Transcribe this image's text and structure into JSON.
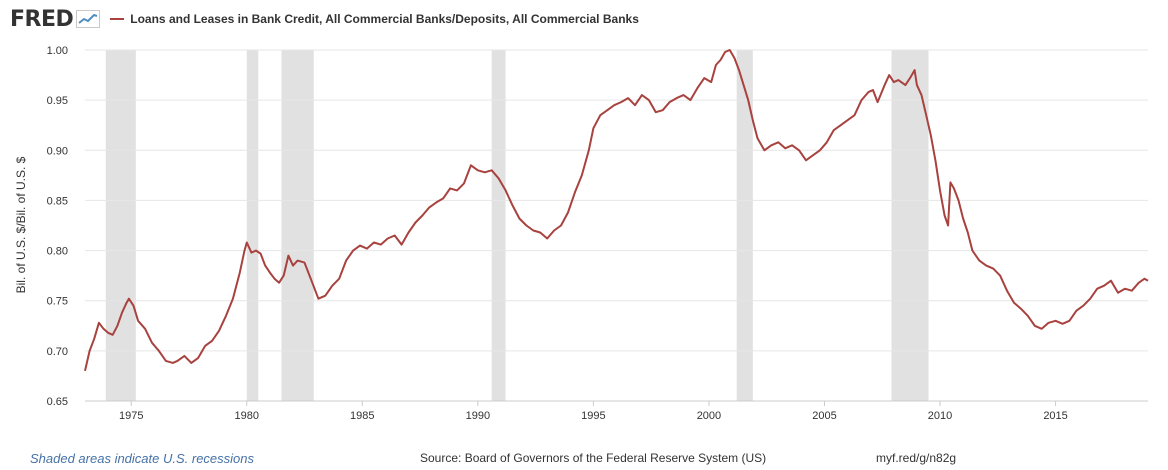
{
  "header": {
    "logo": "FRED",
    "series_label": "Loans and Leases in Bank Credit, All Commercial Banks/Deposits, All Commercial Banks"
  },
  "footer": {
    "recession_note": "Shaded areas indicate U.S. recessions",
    "source": "Source: Board of Governors of the Federal Reserve System (US)",
    "url": "myf.red/g/n82g"
  },
  "colors": {
    "line": "#a8423f",
    "recession": "#e1e1e1",
    "grid": "#e6e6e6",
    "plot_bg": "#ffffff"
  },
  "chart_data": {
    "type": "line",
    "title": "Loans and Leases in Bank Credit, All Commercial Banks/Deposits, All Commercial Banks",
    "xlabel": "",
    "ylabel": "Bil. of U.S. $/Bil. of U.S. $",
    "xlim": [
      1973.0,
      2019.0
    ],
    "ylim": [
      0.65,
      1.0
    ],
    "yticks": [
      0.65,
      0.7,
      0.75,
      0.8,
      0.85,
      0.9,
      0.95,
      1.0
    ],
    "ytick_labels": [
      "0.65",
      "0.70",
      "0.75",
      "0.80",
      "0.85",
      "0.90",
      "0.95",
      "1.00"
    ],
    "xticks": [
      1975,
      1980,
      1985,
      1990,
      1995,
      2000,
      2005,
      2010,
      2015
    ],
    "xtick_labels": [
      "1975",
      "1980",
      "1985",
      "1990",
      "1995",
      "2000",
      "2005",
      "2010",
      "2015"
    ],
    "recessions": [
      [
        1973.9,
        1975.2
      ],
      [
        1980.0,
        1980.5
      ],
      [
        1981.5,
        1982.9
      ],
      [
        1990.6,
        1991.2
      ],
      [
        2001.2,
        2001.9
      ],
      [
        2007.9,
        2009.5
      ]
    ],
    "series": [
      {
        "name": "Loans and Leases in Bank Credit, All Commercial Banks/Deposits, All Commercial Banks",
        "points": [
          [
            1973.0,
            0.68
          ],
          [
            1973.2,
            0.7
          ],
          [
            1973.4,
            0.712
          ],
          [
            1973.6,
            0.728
          ],
          [
            1973.8,
            0.722
          ],
          [
            1974.0,
            0.718
          ],
          [
            1974.2,
            0.716
          ],
          [
            1974.4,
            0.725
          ],
          [
            1974.6,
            0.738
          ],
          [
            1974.8,
            0.748
          ],
          [
            1974.9,
            0.752
          ],
          [
            1975.1,
            0.745
          ],
          [
            1975.3,
            0.73
          ],
          [
            1975.6,
            0.722
          ],
          [
            1975.9,
            0.708
          ],
          [
            1976.2,
            0.7
          ],
          [
            1976.5,
            0.69
          ],
          [
            1976.8,
            0.688
          ],
          [
            1977.0,
            0.69
          ],
          [
            1977.3,
            0.695
          ],
          [
            1977.6,
            0.688
          ],
          [
            1977.9,
            0.693
          ],
          [
            1978.2,
            0.705
          ],
          [
            1978.5,
            0.71
          ],
          [
            1978.8,
            0.72
          ],
          [
            1979.1,
            0.735
          ],
          [
            1979.4,
            0.752
          ],
          [
            1979.7,
            0.778
          ],
          [
            1979.9,
            0.8
          ],
          [
            1980.0,
            0.808
          ],
          [
            1980.2,
            0.798
          ],
          [
            1980.4,
            0.8
          ],
          [
            1980.6,
            0.797
          ],
          [
            1980.8,
            0.785
          ],
          [
            1981.0,
            0.778
          ],
          [
            1981.2,
            0.772
          ],
          [
            1981.4,
            0.768
          ],
          [
            1981.6,
            0.775
          ],
          [
            1981.8,
            0.795
          ],
          [
            1982.0,
            0.785
          ],
          [
            1982.2,
            0.79
          ],
          [
            1982.5,
            0.788
          ],
          [
            1982.8,
            0.77
          ],
          [
            1983.1,
            0.752
          ],
          [
            1983.4,
            0.755
          ],
          [
            1983.7,
            0.765
          ],
          [
            1984.0,
            0.772
          ],
          [
            1984.3,
            0.79
          ],
          [
            1984.6,
            0.8
          ],
          [
            1984.9,
            0.805
          ],
          [
            1985.2,
            0.802
          ],
          [
            1985.5,
            0.808
          ],
          [
            1985.8,
            0.806
          ],
          [
            1986.1,
            0.812
          ],
          [
            1986.4,
            0.815
          ],
          [
            1986.7,
            0.806
          ],
          [
            1987.0,
            0.818
          ],
          [
            1987.3,
            0.828
          ],
          [
            1987.6,
            0.835
          ],
          [
            1987.9,
            0.843
          ],
          [
            1988.2,
            0.848
          ],
          [
            1988.5,
            0.852
          ],
          [
            1988.8,
            0.862
          ],
          [
            1989.1,
            0.86
          ],
          [
            1989.4,
            0.867
          ],
          [
            1989.7,
            0.885
          ],
          [
            1990.0,
            0.88
          ],
          [
            1990.3,
            0.878
          ],
          [
            1990.6,
            0.88
          ],
          [
            1990.9,
            0.872
          ],
          [
            1991.2,
            0.86
          ],
          [
            1991.5,
            0.845
          ],
          [
            1991.8,
            0.832
          ],
          [
            1992.1,
            0.825
          ],
          [
            1992.4,
            0.82
          ],
          [
            1992.7,
            0.818
          ],
          [
            1993.0,
            0.812
          ],
          [
            1993.3,
            0.82
          ],
          [
            1993.6,
            0.825
          ],
          [
            1993.9,
            0.838
          ],
          [
            1994.2,
            0.858
          ],
          [
            1994.5,
            0.875
          ],
          [
            1994.8,
            0.9
          ],
          [
            1995.0,
            0.922
          ],
          [
            1995.3,
            0.935
          ],
          [
            1995.6,
            0.94
          ],
          [
            1995.9,
            0.945
          ],
          [
            1996.2,
            0.948
          ],
          [
            1996.5,
            0.952
          ],
          [
            1996.8,
            0.945
          ],
          [
            1997.1,
            0.955
          ],
          [
            1997.4,
            0.95
          ],
          [
            1997.7,
            0.938
          ],
          [
            1998.0,
            0.94
          ],
          [
            1998.3,
            0.948
          ],
          [
            1998.6,
            0.952
          ],
          [
            1998.9,
            0.955
          ],
          [
            1999.2,
            0.95
          ],
          [
            1999.5,
            0.962
          ],
          [
            1999.8,
            0.972
          ],
          [
            2000.1,
            0.968
          ],
          [
            2000.3,
            0.985
          ],
          [
            2000.5,
            0.99
          ],
          [
            2000.7,
            0.998
          ],
          [
            2000.9,
            1.0
          ],
          [
            2001.1,
            0.992
          ],
          [
            2001.3,
            0.98
          ],
          [
            2001.5,
            0.965
          ],
          [
            2001.7,
            0.95
          ],
          [
            2001.9,
            0.93
          ],
          [
            2002.1,
            0.912
          ],
          [
            2002.4,
            0.9
          ],
          [
            2002.7,
            0.905
          ],
          [
            2003.0,
            0.908
          ],
          [
            2003.3,
            0.902
          ],
          [
            2003.6,
            0.905
          ],
          [
            2003.9,
            0.9
          ],
          [
            2004.2,
            0.89
          ],
          [
            2004.5,
            0.895
          ],
          [
            2004.8,
            0.9
          ],
          [
            2005.1,
            0.908
          ],
          [
            2005.4,
            0.92
          ],
          [
            2005.7,
            0.925
          ],
          [
            2006.0,
            0.93
          ],
          [
            2006.3,
            0.935
          ],
          [
            2006.6,
            0.95
          ],
          [
            2006.9,
            0.958
          ],
          [
            2007.1,
            0.96
          ],
          [
            2007.3,
            0.948
          ],
          [
            2007.6,
            0.965
          ],
          [
            2007.8,
            0.975
          ],
          [
            2008.0,
            0.968
          ],
          [
            2008.2,
            0.97
          ],
          [
            2008.5,
            0.965
          ],
          [
            2008.7,
            0.972
          ],
          [
            2008.9,
            0.98
          ],
          [
            2009.0,
            0.965
          ],
          [
            2009.2,
            0.955
          ],
          [
            2009.4,
            0.935
          ],
          [
            2009.6,
            0.915
          ],
          [
            2009.8,
            0.89
          ],
          [
            2010.0,
            0.86
          ],
          [
            2010.2,
            0.835
          ],
          [
            2010.35,
            0.825
          ],
          [
            2010.45,
            0.868
          ],
          [
            2010.6,
            0.862
          ],
          [
            2010.8,
            0.85
          ],
          [
            2011.0,
            0.832
          ],
          [
            2011.2,
            0.818
          ],
          [
            2011.4,
            0.8
          ],
          [
            2011.7,
            0.79
          ],
          [
            2012.0,
            0.785
          ],
          [
            2012.3,
            0.782
          ],
          [
            2012.6,
            0.775
          ],
          [
            2012.9,
            0.76
          ],
          [
            2013.2,
            0.748
          ],
          [
            2013.5,
            0.742
          ],
          [
            2013.8,
            0.735
          ],
          [
            2014.1,
            0.725
          ],
          [
            2014.4,
            0.722
          ],
          [
            2014.7,
            0.728
          ],
          [
            2015.0,
            0.73
          ],
          [
            2015.3,
            0.727
          ],
          [
            2015.6,
            0.73
          ],
          [
            2015.9,
            0.74
          ],
          [
            2016.2,
            0.745
          ],
          [
            2016.5,
            0.752
          ],
          [
            2016.8,
            0.762
          ],
          [
            2017.1,
            0.765
          ],
          [
            2017.4,
            0.77
          ],
          [
            2017.7,
            0.758
          ],
          [
            2018.0,
            0.762
          ],
          [
            2018.3,
            0.76
          ],
          [
            2018.6,
            0.768
          ],
          [
            2018.85,
            0.772
          ],
          [
            2019.0,
            0.77
          ]
        ]
      }
    ]
  }
}
